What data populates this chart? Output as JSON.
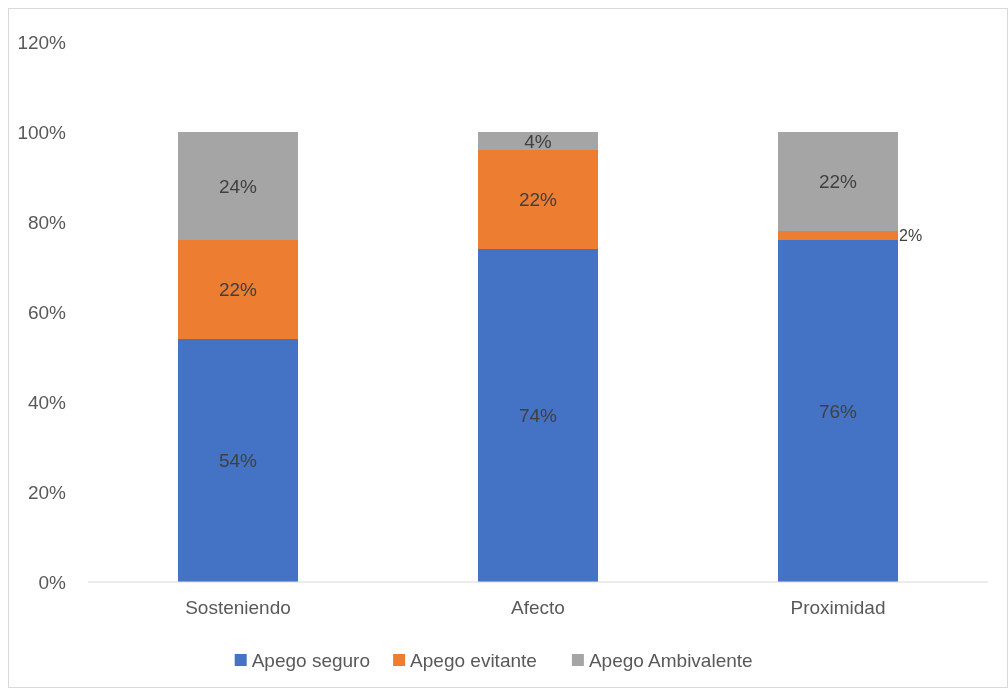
{
  "chart_data": {
    "type": "bar",
    "stacked": true,
    "categories": [
      "Sosteniendo",
      "Afecto",
      "Proximidad"
    ],
    "series": [
      {
        "name": "Apego seguro",
        "color": "#4472c4",
        "values": [
          54,
          74,
          76
        ],
        "value_labels": [
          "54%",
          "74%",
          "76%"
        ]
      },
      {
        "name": "Apego evitante",
        "color": "#ed7d31",
        "values": [
          22,
          22,
          2
        ],
        "value_labels": [
          "22%",
          "22%",
          "2%"
        ]
      },
      {
        "name": "Apego Ambivalente",
        "color": "#a5a5a5",
        "values": [
          24,
          4,
          22
        ],
        "value_labels": [
          "24%",
          "4%",
          "22%"
        ]
      }
    ],
    "ylim": [
      0,
      120
    ],
    "yticks": [
      {
        "value": 0,
        "label": "0%"
      },
      {
        "value": 20,
        "label": "20%"
      },
      {
        "value": 40,
        "label": "40%"
      },
      {
        "value": 60,
        "label": "60%"
      },
      {
        "value": 80,
        "label": "80%"
      },
      {
        "value": 100,
        "label": "100%"
      },
      {
        "value": 120,
        "label": "120%"
      }
    ],
    "grid": false,
    "legend": "bottom"
  }
}
